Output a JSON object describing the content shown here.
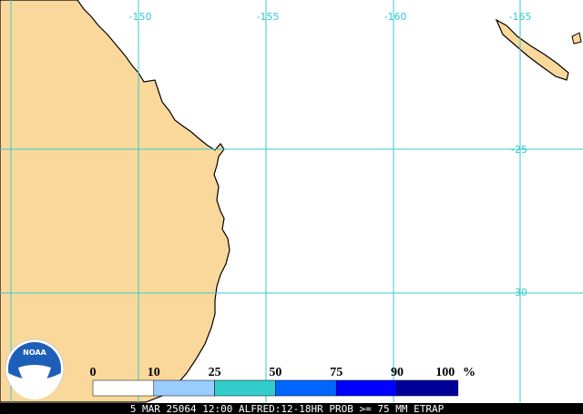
{
  "map": {
    "longitude_labels": [
      "-150",
      "-155",
      "-160",
      "-165"
    ],
    "latitude_labels": [
      "-25",
      "-30"
    ],
    "logo": "NOAA",
    "legend": {
      "labels": [
        "0",
        "10",
        "25",
        "50",
        "75",
        "90",
        "100"
      ],
      "unit": "%",
      "colors": [
        "#ffffff",
        "#99ccff",
        "#33cccc",
        "#0066ff",
        "#0000ff",
        "#000099"
      ]
    },
    "caption": "5 MAR 25064 12:00 ALFRED:12-18HR PROB >= 75 MM ETRAP"
  }
}
